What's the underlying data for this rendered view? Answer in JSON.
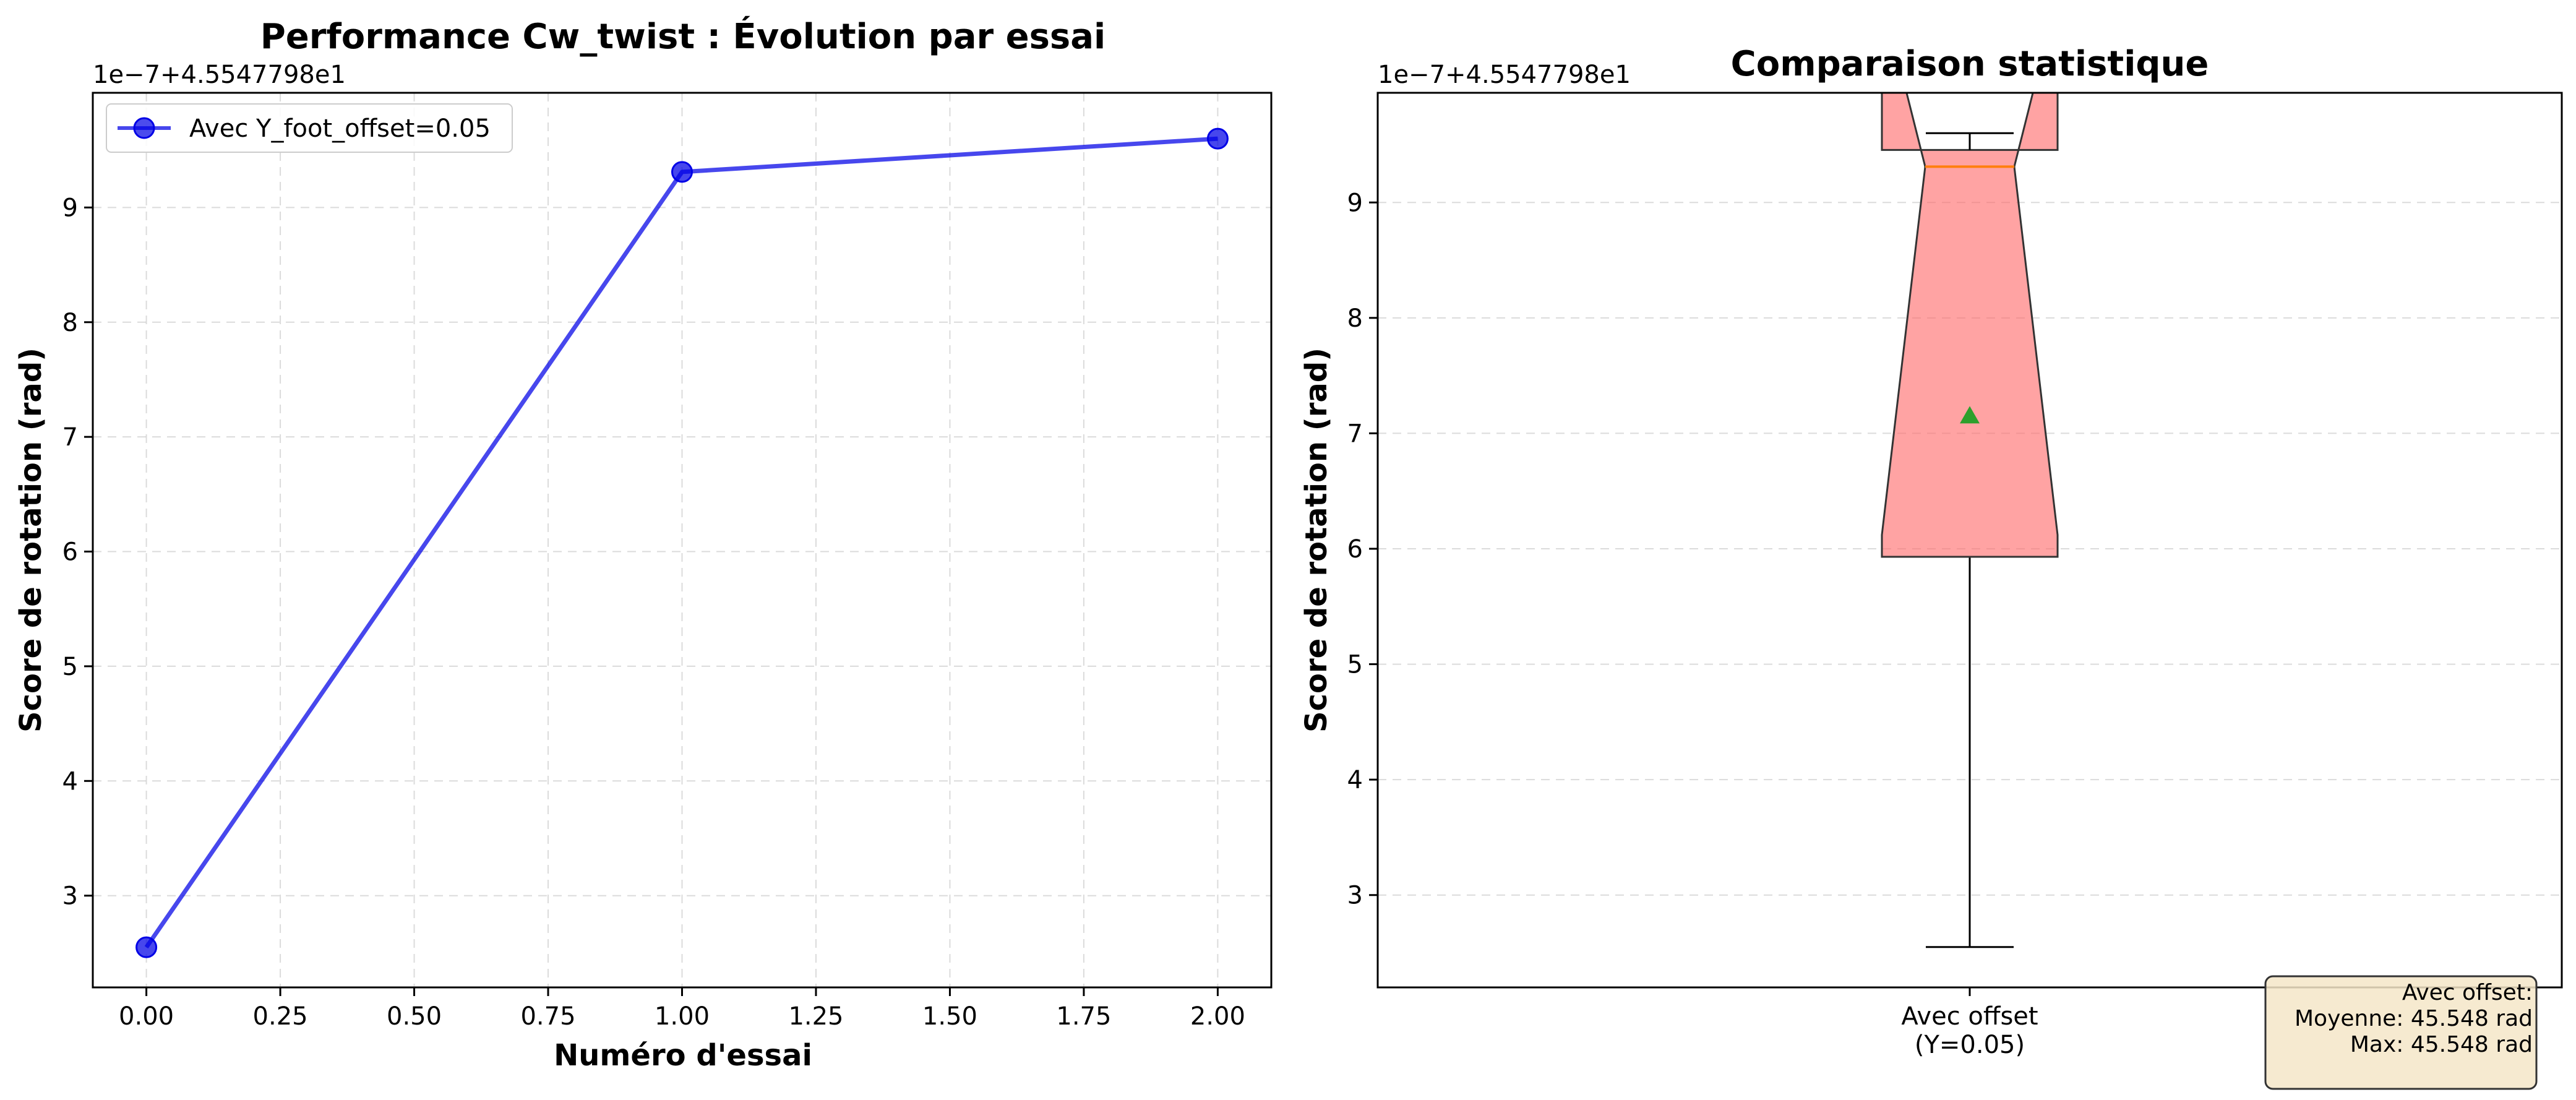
{
  "chart_data": [
    {
      "type": "line",
      "title": "Performance Cw_twist : Évolution par essai",
      "xlabel": "Numéro d'essai",
      "ylabel": "Score de rotation (rad)",
      "y_offset_label": "1e−7+4.5547798e1",
      "xlim": [
        -0.1,
        2.1
      ],
      "ylim": [
        2.2,
        10.0
      ],
      "x_ticks": [
        0.0,
        0.25,
        0.5,
        0.75,
        1.0,
        1.25,
        1.5,
        1.75,
        2.0
      ],
      "x_tick_labels": [
        "0.00",
        "0.25",
        "0.50",
        "0.75",
        "1.00",
        "1.25",
        "1.50",
        "1.75",
        "2.00"
      ],
      "y_ticks": [
        3,
        4,
        5,
        6,
        7,
        8,
        9
      ],
      "y_tick_labels": [
        "3",
        "4",
        "5",
        "6",
        "7",
        "8",
        "9"
      ],
      "grid": true,
      "legend_position": "top-left",
      "series": [
        {
          "name": "Avec Y_foot_offset=0.05",
          "color": "#0000e6",
          "x": [
            0,
            1,
            2
          ],
          "y": [
            2.55,
            9.31,
            9.6
          ]
        }
      ]
    },
    {
      "type": "box",
      "title": "Comparaison statistique",
      "ylabel": "Score de rotation (rad)",
      "y_offset_label": "1e−7+4.5547798e1",
      "ylim": [
        2.2,
        9.95
      ],
      "y_ticks": [
        3,
        4,
        5,
        6,
        7,
        8,
        9
      ],
      "y_tick_labels": [
        "3",
        "4",
        "5",
        "6",
        "7",
        "8",
        "9"
      ],
      "grid": true,
      "categories": [
        "Avec offset\n(Y=0.05)"
      ],
      "category_lines": [
        "Avec offset",
        "(Y=0.05)"
      ],
      "box_color": "#ff6666",
      "boxes": [
        {
          "whisker_low": 2.55,
          "q1": 5.93,
          "median": 9.31,
          "q3": 9.455,
          "whisker_high": 9.6,
          "mean": 7.15,
          "notch_low": 6.12,
          "notch_high": 10.8
        }
      ],
      "mean_color": "#2ca02c",
      "median_color": "#ff7f0e",
      "stats_box": {
        "lines": [
          "Avec offset:",
          "Moyenne: 45.548 rad",
          "Max: 45.548 rad"
        ]
      }
    }
  ]
}
